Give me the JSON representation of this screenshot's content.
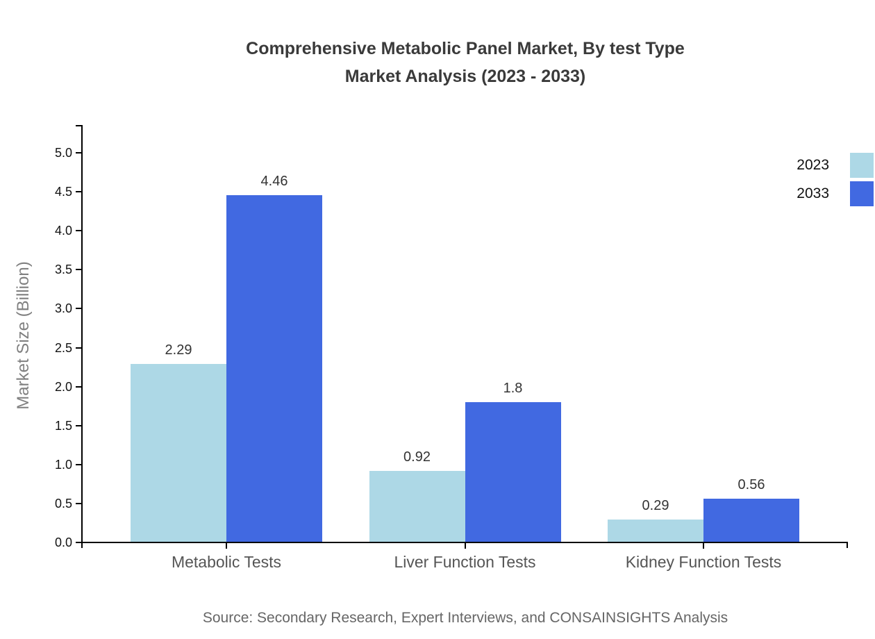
{
  "title": {
    "line1": "Comprehensive Metabolic Panel Market, By test Type",
    "line2": "Market Analysis (2023 - 2033)"
  },
  "source": "Source: Secondary Research, Expert Interviews, and CONSAINSIGHTS Analysis",
  "chart_data": {
    "type": "bar",
    "categories": [
      "Metabolic Tests",
      "Liver Function Tests",
      "Kidney Function Tests"
    ],
    "series": [
      {
        "name": "2023",
        "color": "#ADD8E6",
        "values": [
          2.29,
          0.92,
          0.29
        ]
      },
      {
        "name": "2033",
        "color": "#4169E1",
        "values": [
          4.46,
          1.8,
          0.56
        ]
      }
    ],
    "title": "Comprehensive Metabolic Panel Market, By test Type Market Analysis (2023 - 2033)",
    "xlabel": "",
    "ylabel": "Market Size (Billion)",
    "ylim": [
      0,
      5
    ],
    "ytick_step": 0.5,
    "ytick_labels": [
      "0.0",
      "0.5",
      "1.0",
      "1.5",
      "2.0",
      "2.5",
      "3.0",
      "3.5",
      "4.0",
      "4.5",
      "5.0"
    ],
    "grid": false,
    "legend_position": "top-right",
    "axis_color": "#000000",
    "value_label_color": "#333333"
  }
}
